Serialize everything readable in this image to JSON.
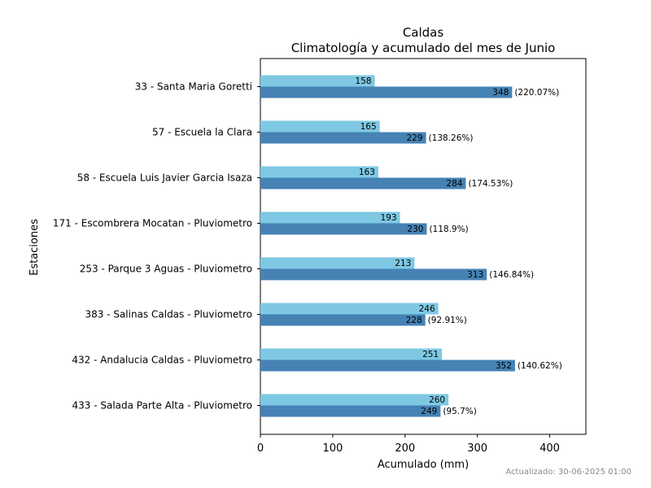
{
  "chart_data": {
    "type": "bar",
    "orientation": "horizontal",
    "title": "Caldas",
    "subtitle": "Climatología y acumulado del mes de Junio",
    "xlabel": "Acumulado (mm)",
    "ylabel": "Estaciones",
    "xlim": [
      0,
      450
    ],
    "xticks": [
      0,
      100,
      200,
      300,
      400
    ],
    "grid": false,
    "categories": [
      "33 - Santa Maria Goretti",
      "57 - Escuela la Clara",
      "58 - Escuela Luis Javier Garcia Isaza",
      "171 - Escombrera Mocatan - Pluviometro",
      "253 - Parque 3 Aguas - Pluviometro",
      "383 - Salinas Caldas - Pluviometro",
      "432 - Andalucia Caldas - Pluviometro",
      "433 - Salada Parte Alta - Pluviometro"
    ],
    "series": [
      {
        "color": "#7ec8e3",
        "values": [
          158,
          165,
          163,
          193,
          213,
          246,
          251,
          260
        ]
      },
      {
        "color": "#4682b4",
        "values": [
          348,
          229,
          284,
          230,
          313,
          228,
          352,
          249
        ],
        "percent_labels": [
          "(220.07%)",
          "(138.26%)",
          "(174.53%)",
          "(118.9%)",
          "(146.84%)",
          "(92.91%)",
          "(140.62%)",
          "(95.7%)"
        ]
      }
    ]
  },
  "footer": {
    "updated": "Actualizado: 30-06-2025 01:00"
  }
}
